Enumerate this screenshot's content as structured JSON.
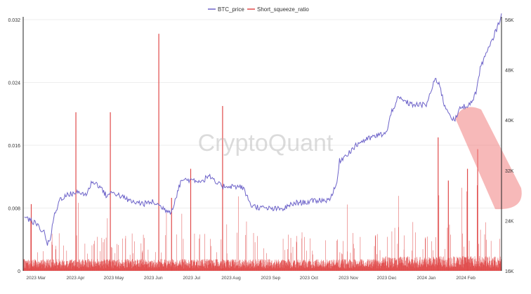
{
  "chart_data": {
    "type": "bar+line",
    "legend": [
      {
        "name": "BTC_price",
        "color": "#6d63c9"
      },
      {
        "name": "Short_squeeze_ratio",
        "color": "#e04a4a"
      }
    ],
    "legend_position": "top-center",
    "watermark": "CryptoQuant",
    "x_ticks": [
      "2023 Mar",
      "2023 Apr",
      "2023 May",
      "2023 Jun",
      "2023 Jul",
      "2023 Aug",
      "2023 Sep",
      "2023 Oct",
      "2023 Nov",
      "2023 Dec",
      "2024 Jan",
      "2024 Feb"
    ],
    "y_left": {
      "ticks": [
        "0",
        "0.008",
        "0.016",
        "0.024",
        "0.032"
      ],
      "lim": [
        0,
        0.032
      ]
    },
    "y_right": {
      "ticks": [
        "16K",
        "24K",
        "32K",
        "40K",
        "48K",
        "56K"
      ],
      "lim": [
        16000,
        56000
      ]
    },
    "grid": "horizontal",
    "series": [
      {
        "name": "BTC_price",
        "axis": "right",
        "x": [
          "2023-02-20",
          "2023-03-01",
          "2023-03-08",
          "2023-03-10",
          "2023-03-12",
          "2023-03-15",
          "2023-03-20",
          "2023-03-25",
          "2023-04-01",
          "2023-04-10",
          "2023-04-14",
          "2023-04-20",
          "2023-04-25",
          "2023-05-01",
          "2023-05-10",
          "2023-05-15",
          "2023-05-25",
          "2023-06-01",
          "2023-06-10",
          "2023-06-15",
          "2023-06-20",
          "2023-06-23",
          "2023-07-01",
          "2023-07-10",
          "2023-07-14",
          "2023-07-20",
          "2023-07-25",
          "2023-08-01",
          "2023-08-10",
          "2023-08-17",
          "2023-08-25",
          "2023-09-01",
          "2023-09-10",
          "2023-09-20",
          "2023-10-01",
          "2023-10-10",
          "2023-10-16",
          "2023-10-20",
          "2023-10-23",
          "2023-10-25",
          "2023-11-01",
          "2023-11-10",
          "2023-11-20",
          "2023-12-01",
          "2023-12-05",
          "2023-12-10",
          "2023-12-20",
          "2024-01-01",
          "2024-01-08",
          "2024-01-11",
          "2024-01-15",
          "2024-01-23",
          "2024-01-28",
          "2024-02-05",
          "2024-02-09",
          "2024-02-13",
          "2024-02-20",
          "2024-02-27",
          "2024-02-29"
        ],
        "values": [
          24600,
          23500,
          22000,
          20200,
          20800,
          24500,
          27500,
          28000,
          28500,
          28200,
          30300,
          29500,
          28000,
          28500,
          27500,
          27000,
          26700,
          27000,
          25800,
          25400,
          28500,
          30500,
          30500,
          30300,
          31200,
          30000,
          29500,
          29500,
          29300,
          26400,
          26000,
          25900,
          25800,
          26800,
          27000,
          27300,
          27200,
          28500,
          30000,
          33500,
          34800,
          36500,
          37300,
          38000,
          41500,
          43500,
          42500,
          42400,
          46500,
          46000,
          42500,
          39800,
          42000,
          42600,
          44500,
          48800,
          51800,
          55500,
          57000
        ]
      },
      {
        "name": "Short_squeeze_ratio",
        "axis": "left",
        "type": "bar",
        "note": "approx. 6 hourly spikes per day, baseline ~0.001-0.002",
        "spikes": [
          {
            "x": "2023-02-25",
            "value": 0.0085
          },
          {
            "x": "2023-04-01",
            "value": 0.0202
          },
          {
            "x": "2023-04-28",
            "value": 0.0202
          },
          {
            "x": "2023-06-05",
            "value": 0.0302
          },
          {
            "x": "2023-06-15",
            "value": 0.0093
          },
          {
            "x": "2023-07-25",
            "value": 0.021
          },
          {
            "x": "2023-06-30",
            "value": 0.013
          },
          {
            "x": "2024-01-10",
            "value": 0.017
          },
          {
            "x": "2024-01-18",
            "value": 0.0115
          },
          {
            "x": "2024-02-02",
            "value": 0.013
          },
          {
            "x": "2024-02-10",
            "value": 0.0155
          }
        ]
      }
    ]
  }
}
